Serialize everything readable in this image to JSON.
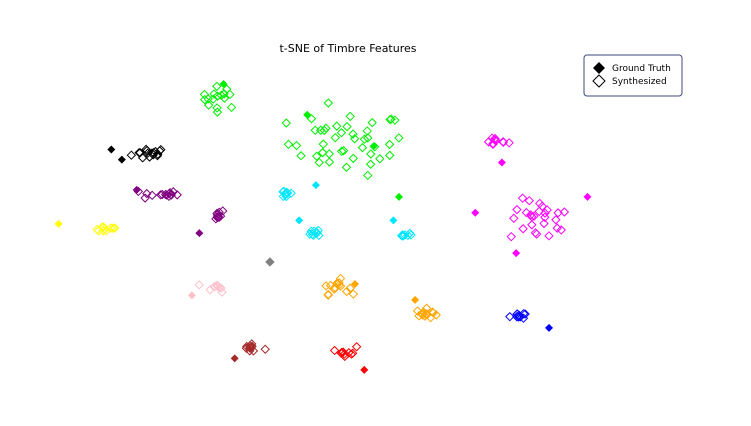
{
  "chart_data": {
    "type": "scatter",
    "title": "t-SNE of Timbre Features",
    "xlabel": "",
    "ylabel": "",
    "axes_visible": false,
    "grid": false,
    "xlim": [
      0,
      100
    ],
    "ylim": [
      0,
      100
    ],
    "legend": {
      "placement": "top-right",
      "entries": [
        {
          "label": "Ground Truth",
          "marker": "filled-diamond",
          "color": "#000000"
        },
        {
          "label": "Synthesized",
          "marker": "hollow-diamond",
          "color": "#000000"
        }
      ]
    },
    "clusters": [
      {
        "color": "#000000",
        "ground_truth": [
          [
            11.5,
            72.5
          ],
          [
            13.2,
            69.3
          ]
        ],
        "synthesized_center": [
          17.7,
          71.2
        ],
        "synthesized_spread": [
          2.4,
          1.6
        ],
        "synthesized_count": 16
      },
      {
        "color": "#00ee00",
        "ground_truth": [
          [
            29.6,
            93.1
          ]
        ],
        "synthesized_center": [
          29.1,
          88.8
        ],
        "synthesized_spread": [
          2.6,
          2.9
        ],
        "synthesized_count": 16
      },
      {
        "color": "#00ee00",
        "ground_truth": [
          [
            43.1,
            83.4
          ],
          [
            53.8,
            73.5
          ],
          [
            57.9,
            57.6
          ]
        ],
        "synthesized_center": [
          49.5,
          74.5
        ],
        "synthesized_spread": [
          7.9,
          8.4
        ],
        "synthesized_count": 44
      },
      {
        "color": "#ff00ff",
        "ground_truth": [
          [
            74.5,
            68.4
          ]
        ],
        "synthesized_center": [
          73.5,
          75.0
        ],
        "synthesized_spread": [
          1.7,
          1.2
        ],
        "synthesized_count": 10
      },
      {
        "color": "#ff00ff",
        "ground_truth": [
          [
            70.2,
            52.6
          ],
          [
            88.3,
            57.6
          ],
          [
            76.8,
            39.9
          ]
        ],
        "synthesized_center": [
          80.8,
          50.0
        ],
        "synthesized_spread": [
          4.2,
          5.5
        ],
        "synthesized_count": 26
      },
      {
        "color": "#800080",
        "ground_truth": [
          [
            15.6,
            59.8
          ]
        ],
        "synthesized_center": [
          19.3,
          58.4
        ],
        "synthesized_spread": [
          2.5,
          1.4
        ],
        "synthesized_count": 14
      },
      {
        "color": "#800080",
        "ground_truth": [
          [
            25.7,
            46.2
          ]
        ],
        "synthesized_center": [
          28.3,
          52.0
        ],
        "synthesized_spread": [
          1.3,
          1.3
        ],
        "synthesized_count": 10
      },
      {
        "color": "#ffff00",
        "ground_truth": [
          [
            3.0,
            49.1
          ]
        ],
        "synthesized_center": [
          10.5,
          47.5
        ],
        "synthesized_spread": [
          2.0,
          0.9
        ],
        "synthesized_count": 10
      },
      {
        "color": "#00e5ff",
        "ground_truth": [
          [
            44.5,
            61.3
          ]
        ],
        "synthesized_center": [
          39.8,
          58.6
        ],
        "synthesized_spread": [
          1.0,
          1.2
        ],
        "synthesized_count": 10
      },
      {
        "color": "#00e5ff",
        "ground_truth": [
          [
            41.8,
            50.2
          ]
        ],
        "synthesized_center": [
          44.7,
          46.5
        ],
        "synthesized_spread": [
          0.9,
          1.3
        ],
        "synthesized_count": 8
      },
      {
        "color": "#00e5ff",
        "ground_truth": [
          [
            57.0,
            50.2
          ]
        ],
        "synthesized_center": [
          58.5,
          45.6
        ],
        "synthesized_spread": [
          1.3,
          0.6
        ],
        "synthesized_count": 8
      },
      {
        "color": "#ffc0cb",
        "ground_truth": [
          [
            24.5,
            26.6
          ]
        ],
        "synthesized_center": [
          28.6,
          29.1
        ],
        "synthesized_spread": [
          1.4,
          1.2
        ],
        "synthesized_count": 10
      },
      {
        "color": "#808080",
        "ground_truth": [
          [
            37.1,
            37.2
          ]
        ],
        "synthesized_center": [
          37.1,
          37.2
        ],
        "synthesized_spread": [
          0.1,
          0.1
        ],
        "synthesized_count": 1
      },
      {
        "color": "#ffa500",
        "ground_truth": [
          [
            50.8,
            30.2
          ]
        ],
        "synthesized_center": [
          47.6,
          29.3
        ],
        "synthesized_spread": [
          1.8,
          1.9
        ],
        "synthesized_count": 16
      },
      {
        "color": "#ffa500",
        "ground_truth": [
          [
            60.5,
            25.2
          ]
        ],
        "synthesized_center": [
          62.4,
          20.8
        ],
        "synthesized_spread": [
          1.4,
          1.3
        ],
        "synthesized_count": 14
      },
      {
        "color": "#0000ff",
        "ground_truth": [
          [
            82.1,
            16.4
          ]
        ],
        "synthesized_center": [
          77.0,
          20.3
        ],
        "synthesized_spread": [
          1.0,
          0.9
        ],
        "synthesized_count": 10
      },
      {
        "color": "#a52a2a",
        "ground_truth": [
          [
            31.4,
            6.8
          ]
        ],
        "synthesized_center": [
          34.0,
          9.9
        ],
        "synthesized_spread": [
          1.4,
          1.4
        ],
        "synthesized_count": 12
      },
      {
        "color": "#ff0000",
        "ground_truth": [
          [
            52.3,
            3.2
          ]
        ],
        "synthesized_center": [
          49.6,
          9.1
        ],
        "synthesized_spread": [
          1.2,
          1.3
        ],
        "synthesized_count": 10
      }
    ]
  }
}
